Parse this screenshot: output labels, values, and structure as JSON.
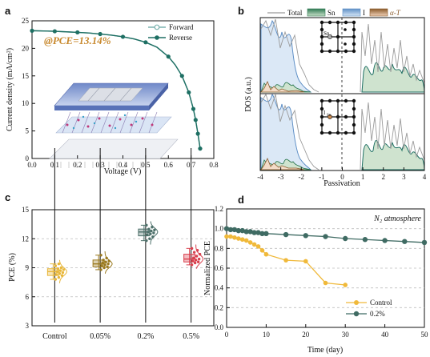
{
  "panels": {
    "a": "a",
    "b": "b",
    "c": "c",
    "d": "d"
  },
  "chart_data": [
    {
      "panel": "a",
      "type": "line",
      "xlabel": "Voltage (V)",
      "ylabel": "Current density (mA/cm²)",
      "annotation": "@PCE=13.14%",
      "xlim": [
        0.0,
        0.8
      ],
      "ylim": [
        0,
        25
      ],
      "xticks": [
        "0.0",
        "0.1",
        "0.2",
        "0.3",
        "0.4",
        "0.5",
        "0.6",
        "0.7",
        "0.8"
      ],
      "yticks": [
        "0",
        "5",
        "10",
        "15",
        "20",
        "25"
      ],
      "legend_position": "top-right",
      "colors": {
        "forward": "#7bb3b0",
        "reverse": "#1e6f63"
      },
      "series": [
        {
          "name": "Forward",
          "x": [
            0.0,
            0.05,
            0.1,
            0.15,
            0.2,
            0.25,
            0.3,
            0.35,
            0.4,
            0.45,
            0.5,
            0.55,
            0.6,
            0.63,
            0.66,
            0.69,
            0.71,
            0.72,
            0.73,
            0.74
          ],
          "y": [
            23.2,
            23.15,
            23.1,
            23.0,
            22.9,
            22.8,
            22.6,
            22.4,
            22.1,
            21.7,
            21.1,
            20.2,
            18.5,
            17.0,
            15.0,
            12.0,
            9.0,
            7.0,
            4.5,
            1.8
          ]
        },
        {
          "name": "Reverse",
          "x": [
            0.0,
            0.05,
            0.1,
            0.15,
            0.2,
            0.25,
            0.3,
            0.35,
            0.4,
            0.45,
            0.5,
            0.55,
            0.6,
            0.63,
            0.66,
            0.69,
            0.71,
            0.72,
            0.73,
            0.74
          ],
          "y": [
            23.2,
            23.15,
            23.1,
            23.0,
            22.9,
            22.8,
            22.6,
            22.4,
            22.1,
            21.7,
            21.1,
            20.2,
            18.5,
            17.0,
            15.0,
            12.0,
            9.0,
            7.0,
            4.5,
            1.8
          ]
        }
      ]
    },
    {
      "panel": "b",
      "type": "area",
      "xlabel": "Passivation",
      "ylabel": "DOS (a.u.)",
      "xlim": [
        -4,
        4
      ],
      "xticks": [
        "-4",
        "-3",
        "-2",
        "-1",
        "0",
        "1",
        "2",
        "3",
        "4"
      ],
      "legend_position": "top",
      "legend": [
        {
          "name": "Total",
          "color": "#9a9a9a"
        },
        {
          "name": "Sn",
          "color": "#2f7a53"
        },
        {
          "name": "I",
          "color": "#8fb3d9"
        },
        {
          "name": "α-T",
          "color": "#8a5a2a"
        }
      ],
      "insets": [
        {
          "label": "Sn",
          "sub": "i"
        },
        {
          "label": "I",
          "sub": "Sn"
        }
      ]
    },
    {
      "panel": "c",
      "type": "box",
      "ylabel": "PCE (%)",
      "ylim": [
        3,
        15
      ],
      "yticks": [
        "3",
        "6",
        "9",
        "12",
        "15"
      ],
      "categories": [
        "Control",
        "0.05%",
        "0.2%",
        "0.5%"
      ],
      "colors": [
        "#e8b73a",
        "#9b7a1f",
        "#4d706a",
        "#d9424f"
      ],
      "boxes": [
        {
          "min": 7.8,
          "q1": 8.2,
          "median": 8.6,
          "q3": 8.9,
          "max": 9.4,
          "points": [
            7.8,
            8.0,
            8.2,
            8.3,
            8.4,
            8.5,
            8.6,
            8.7,
            8.8,
            8.9,
            9.0,
            9.2,
            9.4
          ]
        },
        {
          "min": 8.8,
          "q1": 9.1,
          "median": 9.4,
          "q3": 9.8,
          "max": 10.3,
          "points": [
            8.8,
            9.0,
            9.1,
            9.2,
            9.3,
            9.4,
            9.5,
            9.6,
            9.7,
            9.8,
            10.0,
            10.3
          ]
        },
        {
          "min": 11.8,
          "q1": 12.3,
          "median": 12.7,
          "q3": 13.0,
          "max": 13.4,
          "points": [
            11.8,
            12.0,
            12.2,
            12.4,
            12.5,
            12.6,
            12.7,
            12.8,
            12.9,
            13.0,
            13.2,
            13.4
          ]
        },
        {
          "min": 9.3,
          "q1": 9.6,
          "median": 9.9,
          "q3": 10.4,
          "max": 11.0,
          "points": [
            9.3,
            9.5,
            9.6,
            9.7,
            9.8,
            9.9,
            10.0,
            10.2,
            10.4,
            10.6,
            10.8,
            11.0
          ]
        }
      ]
    },
    {
      "panel": "d",
      "type": "line",
      "annotation": "N₂ atmosphere",
      "xlabel": "Time (day)",
      "ylabel": "Normalized PCE",
      "xlim": [
        0,
        50
      ],
      "ylim": [
        0.0,
        1.2
      ],
      "xticks": [
        "0",
        "10",
        "20",
        "30",
        "40",
        "50"
      ],
      "yticks": [
        "0.0",
        "0.2",
        "0.4",
        "0.6",
        "0.8",
        "1.0",
        "1.2"
      ],
      "grid": true,
      "legend_position": "bottom-center",
      "colors": {
        "control": "#f0b93a",
        "treated": "#3f6b63"
      },
      "series": [
        {
          "name": "Control",
          "x": [
            0,
            1,
            2,
            3,
            4,
            5,
            6,
            7,
            8,
            9,
            10,
            15,
            20,
            25,
            30
          ],
          "y": [
            0.92,
            0.92,
            0.91,
            0.9,
            0.89,
            0.88,
            0.86,
            0.84,
            0.82,
            0.78,
            0.74,
            0.68,
            0.67,
            0.45,
            0.43
          ]
        },
        {
          "name": "0.2%",
          "x": [
            0,
            1,
            2,
            3,
            4,
            5,
            6,
            7,
            8,
            9,
            10,
            15,
            20,
            25,
            30,
            35,
            40,
            45,
            50
          ],
          "y": [
            1.0,
            0.99,
            0.99,
            0.98,
            0.98,
            0.97,
            0.97,
            0.96,
            0.96,
            0.95,
            0.95,
            0.94,
            0.93,
            0.92,
            0.9,
            0.89,
            0.88,
            0.87,
            0.86
          ]
        }
      ]
    }
  ]
}
